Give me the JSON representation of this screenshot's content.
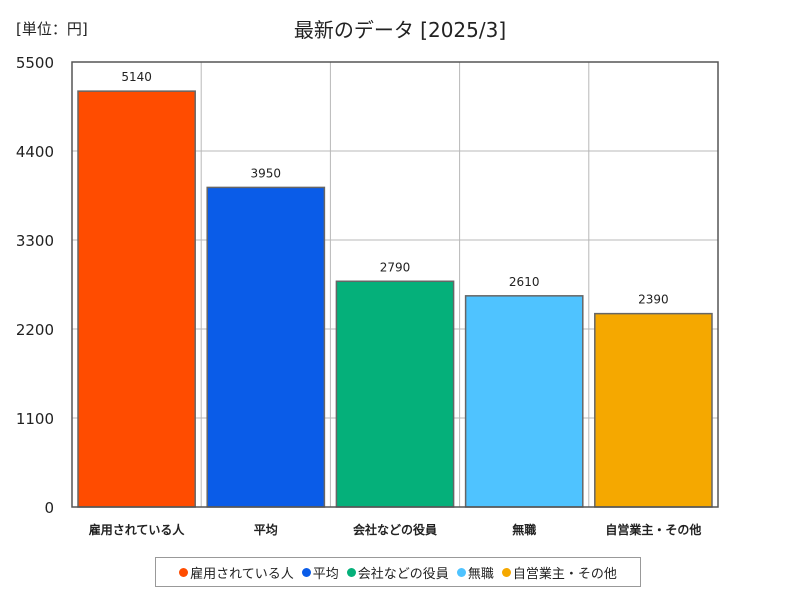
{
  "chart_data": {
    "type": "bar",
    "title": "最新のデータ [2025/3]",
    "unit_label": "[単位：円]",
    "categories": [
      "雇用されている人",
      "平均",
      "会社などの役員",
      "無職",
      "自営業主・その他"
    ],
    "values": [
      5140,
      3950,
      2790,
      2610,
      2390
    ],
    "value_labels": [
      "5140",
      "3950",
      "2790",
      "2610",
      "2390"
    ],
    "colors": [
      "#ff4c00",
      "#0a5ce8",
      "#05b07a",
      "#4fc3ff",
      "#f5a800"
    ],
    "ylim": [
      0,
      5500
    ],
    "yticks": [
      0,
      1100,
      2200,
      3300,
      4400,
      5500
    ],
    "legend_position": "bottom"
  }
}
